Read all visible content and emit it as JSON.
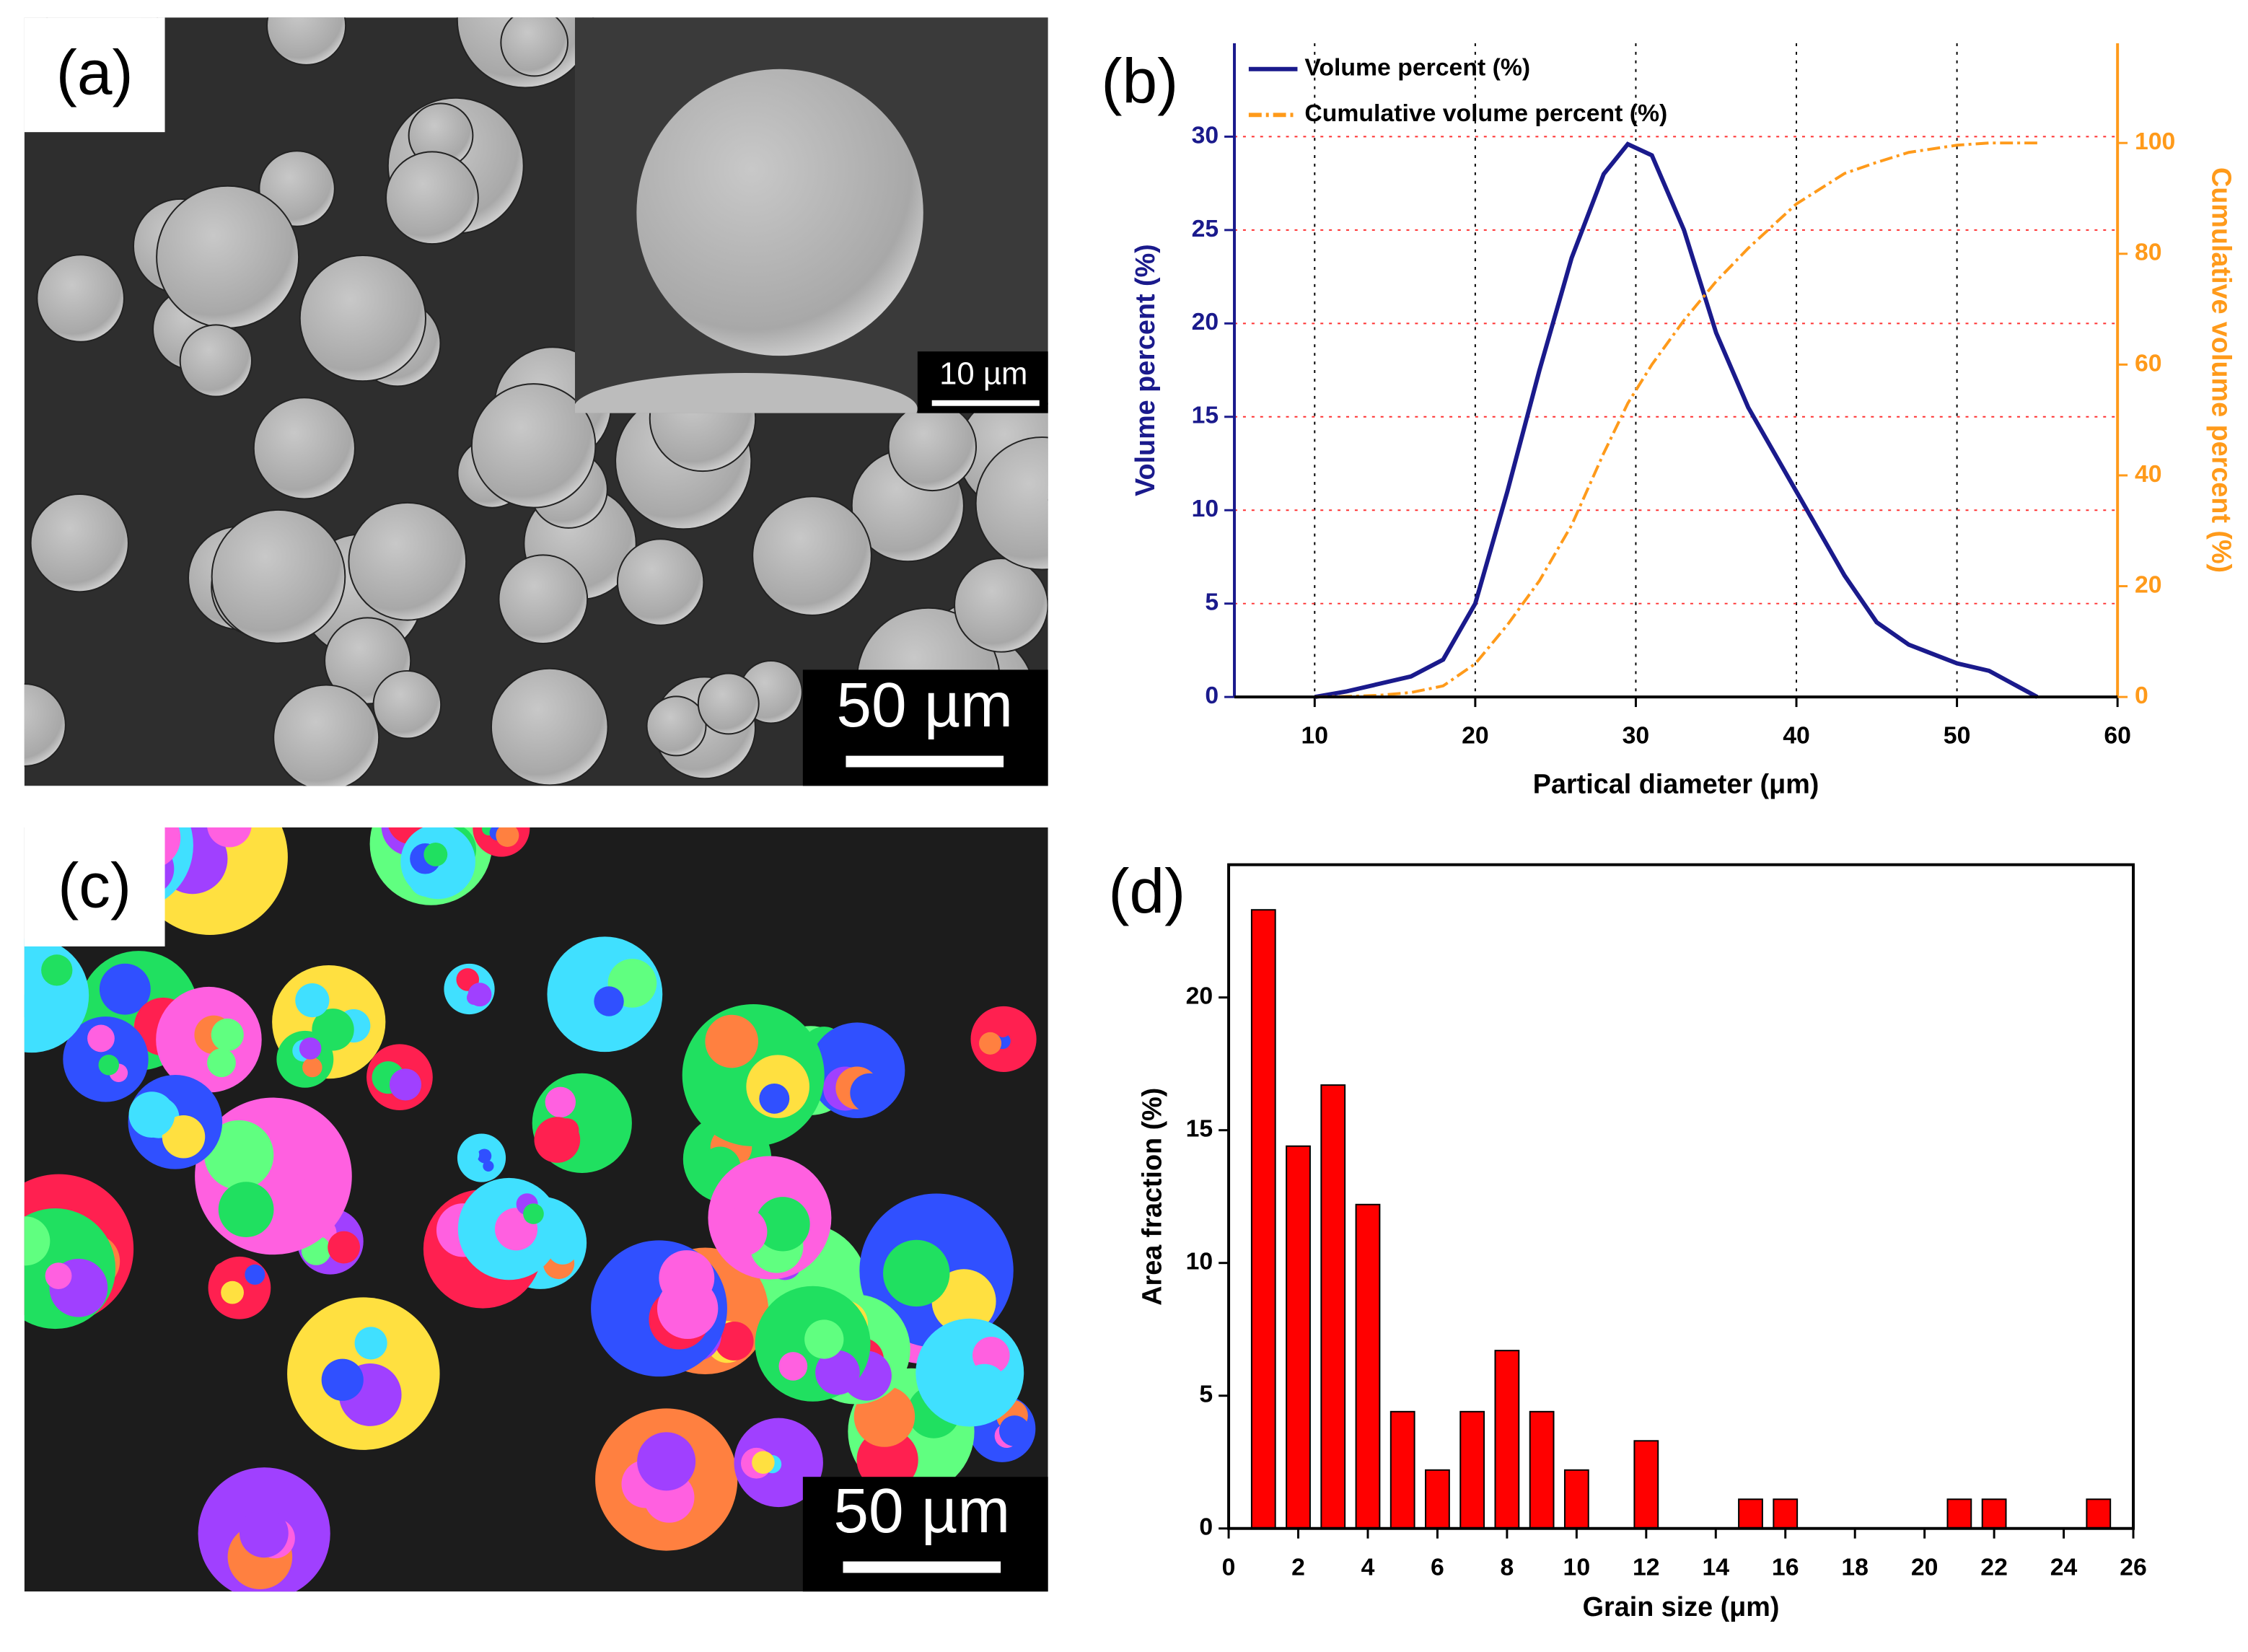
{
  "chart_data": [
    {
      "type": "line",
      "panel_label": "(b)",
      "xlabel": "Partical diameter (μm)",
      "ylabel": "Volume percent (%)",
      "y2label": "Cumulative volume percent (%)",
      "x": [
        10,
        12,
        14,
        16,
        18,
        20,
        22,
        24,
        26,
        28,
        29.5,
        31,
        33,
        35,
        37,
        40,
        43,
        45,
        47,
        50,
        52,
        55
      ],
      "series": [
        {
          "name": "Volume percent (%)",
          "color": "#1a1a8c",
          "style": "solid",
          "values": [
            0,
            0.3,
            0.7,
            1.1,
            2,
            5,
            11,
            17.5,
            23.5,
            28,
            29.6,
            29,
            25,
            19.5,
            15.5,
            11,
            6.5,
            4,
            2.8,
            1.8,
            1.4,
            0
          ]
        },
        {
          "name": "Cumulative volume percent (%)",
          "color": "#ff9a1a",
          "style": "dashdot",
          "axis": "y2",
          "values": [
            0,
            0.1,
            0.3,
            0.8,
            2,
            6,
            13,
            21,
            31,
            44,
            53,
            60,
            68,
            75,
            81,
            89,
            94.5,
            96.5,
            98.3,
            99.6,
            100,
            100
          ]
        }
      ],
      "xlim": [
        5,
        60
      ],
      "xticks": [
        10,
        20,
        30,
        40,
        50,
        60
      ],
      "ylim": [
        0,
        35
      ],
      "yticks": [
        0,
        5,
        10,
        15,
        20,
        25,
        30
      ],
      "y2lim": [
        0,
        118
      ],
      "y2ticks": [
        0,
        20,
        40,
        60,
        80,
        100
      ],
      "grid": true,
      "xgrid_color": "#000000",
      "ygrid_color": "#ff3030",
      "legend": "upper left"
    },
    {
      "type": "bar",
      "panel_label": "(d)",
      "xlabel": "Grain size (μm)",
      "ylabel": "Area fraction (%)",
      "x": [
        1,
        2,
        3,
        4,
        5,
        6,
        7,
        8,
        9,
        10,
        12,
        15,
        16,
        21,
        22,
        25
      ],
      "values": [
        23.3,
        14.4,
        16.7,
        12.2,
        4.4,
        2.2,
        4.4,
        6.7,
        4.4,
        2.2,
        3.3,
        1.1,
        1.1,
        1.1,
        1.1,
        1.1
      ],
      "color": "#ff0000",
      "xlim": [
        0,
        26
      ],
      "xticks": [
        0,
        2,
        4,
        6,
        8,
        10,
        12,
        14,
        16,
        18,
        20,
        22,
        24,
        26
      ],
      "ylim": [
        0,
        25
      ],
      "yticks": [
        0,
        5,
        10,
        15,
        20
      ],
      "grid": false
    }
  ],
  "images": [
    {
      "panel_label": "(a)",
      "scale_bar": "50 µm",
      "inset_scale_bar": "10 µm"
    },
    {
      "panel_label": "(c)",
      "scale_bar": "50 µm"
    }
  ]
}
